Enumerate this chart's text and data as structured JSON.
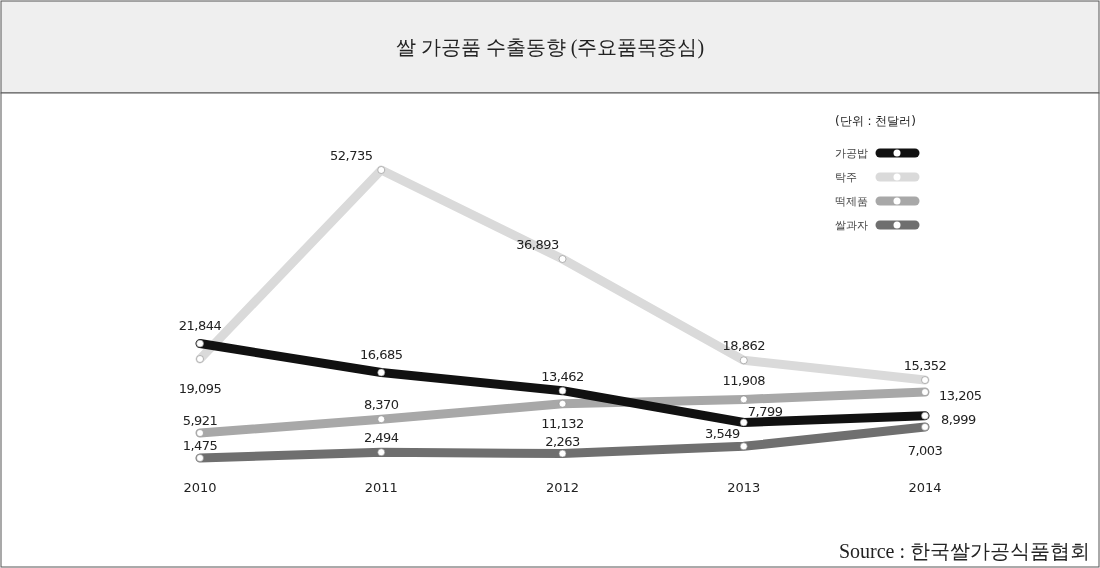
{
  "chart_data": {
    "type": "line",
    "title": "쌀 가공품 수출동향 (주요품목중심)",
    "legend_title": "(단위 : 천달러)",
    "categories": [
      "2010",
      "2011",
      "2012",
      "2013",
      "2014"
    ],
    "series": [
      {
        "name": "가공밥",
        "color": "#111111",
        "values": [
          21844,
          16685,
          13462,
          7799,
          8999
        ],
        "value_labels": [
          "21,844",
          "16,685",
          "13,462",
          "7,799",
          "8,999"
        ]
      },
      {
        "name": "탁주",
        "color": "#dadada",
        "values": [
          19095,
          52735,
          36893,
          18862,
          15352
        ],
        "value_labels": [
          "19,095",
          "52,735",
          "36,893",
          "18,862",
          "15,352"
        ]
      },
      {
        "name": "떡제품",
        "color": "#a8a8a8",
        "values": [
          5921,
          8370,
          11132,
          11908,
          13205
        ],
        "value_labels": [
          "5,921",
          "8,370",
          "11,132",
          "11,908",
          "13,205"
        ]
      },
      {
        "name": "쌀과자",
        "color": "#6f6f6f",
        "values": [
          1475,
          2494,
          2263,
          3549,
          7003
        ],
        "value_labels": [
          "1,475",
          "2,494",
          "2,263",
          "3,549",
          "7,003"
        ]
      }
    ],
    "marker": "circle",
    "legend": "top right",
    "annotations": [
      "Source : 한국쌀가공식품협회"
    ]
  }
}
